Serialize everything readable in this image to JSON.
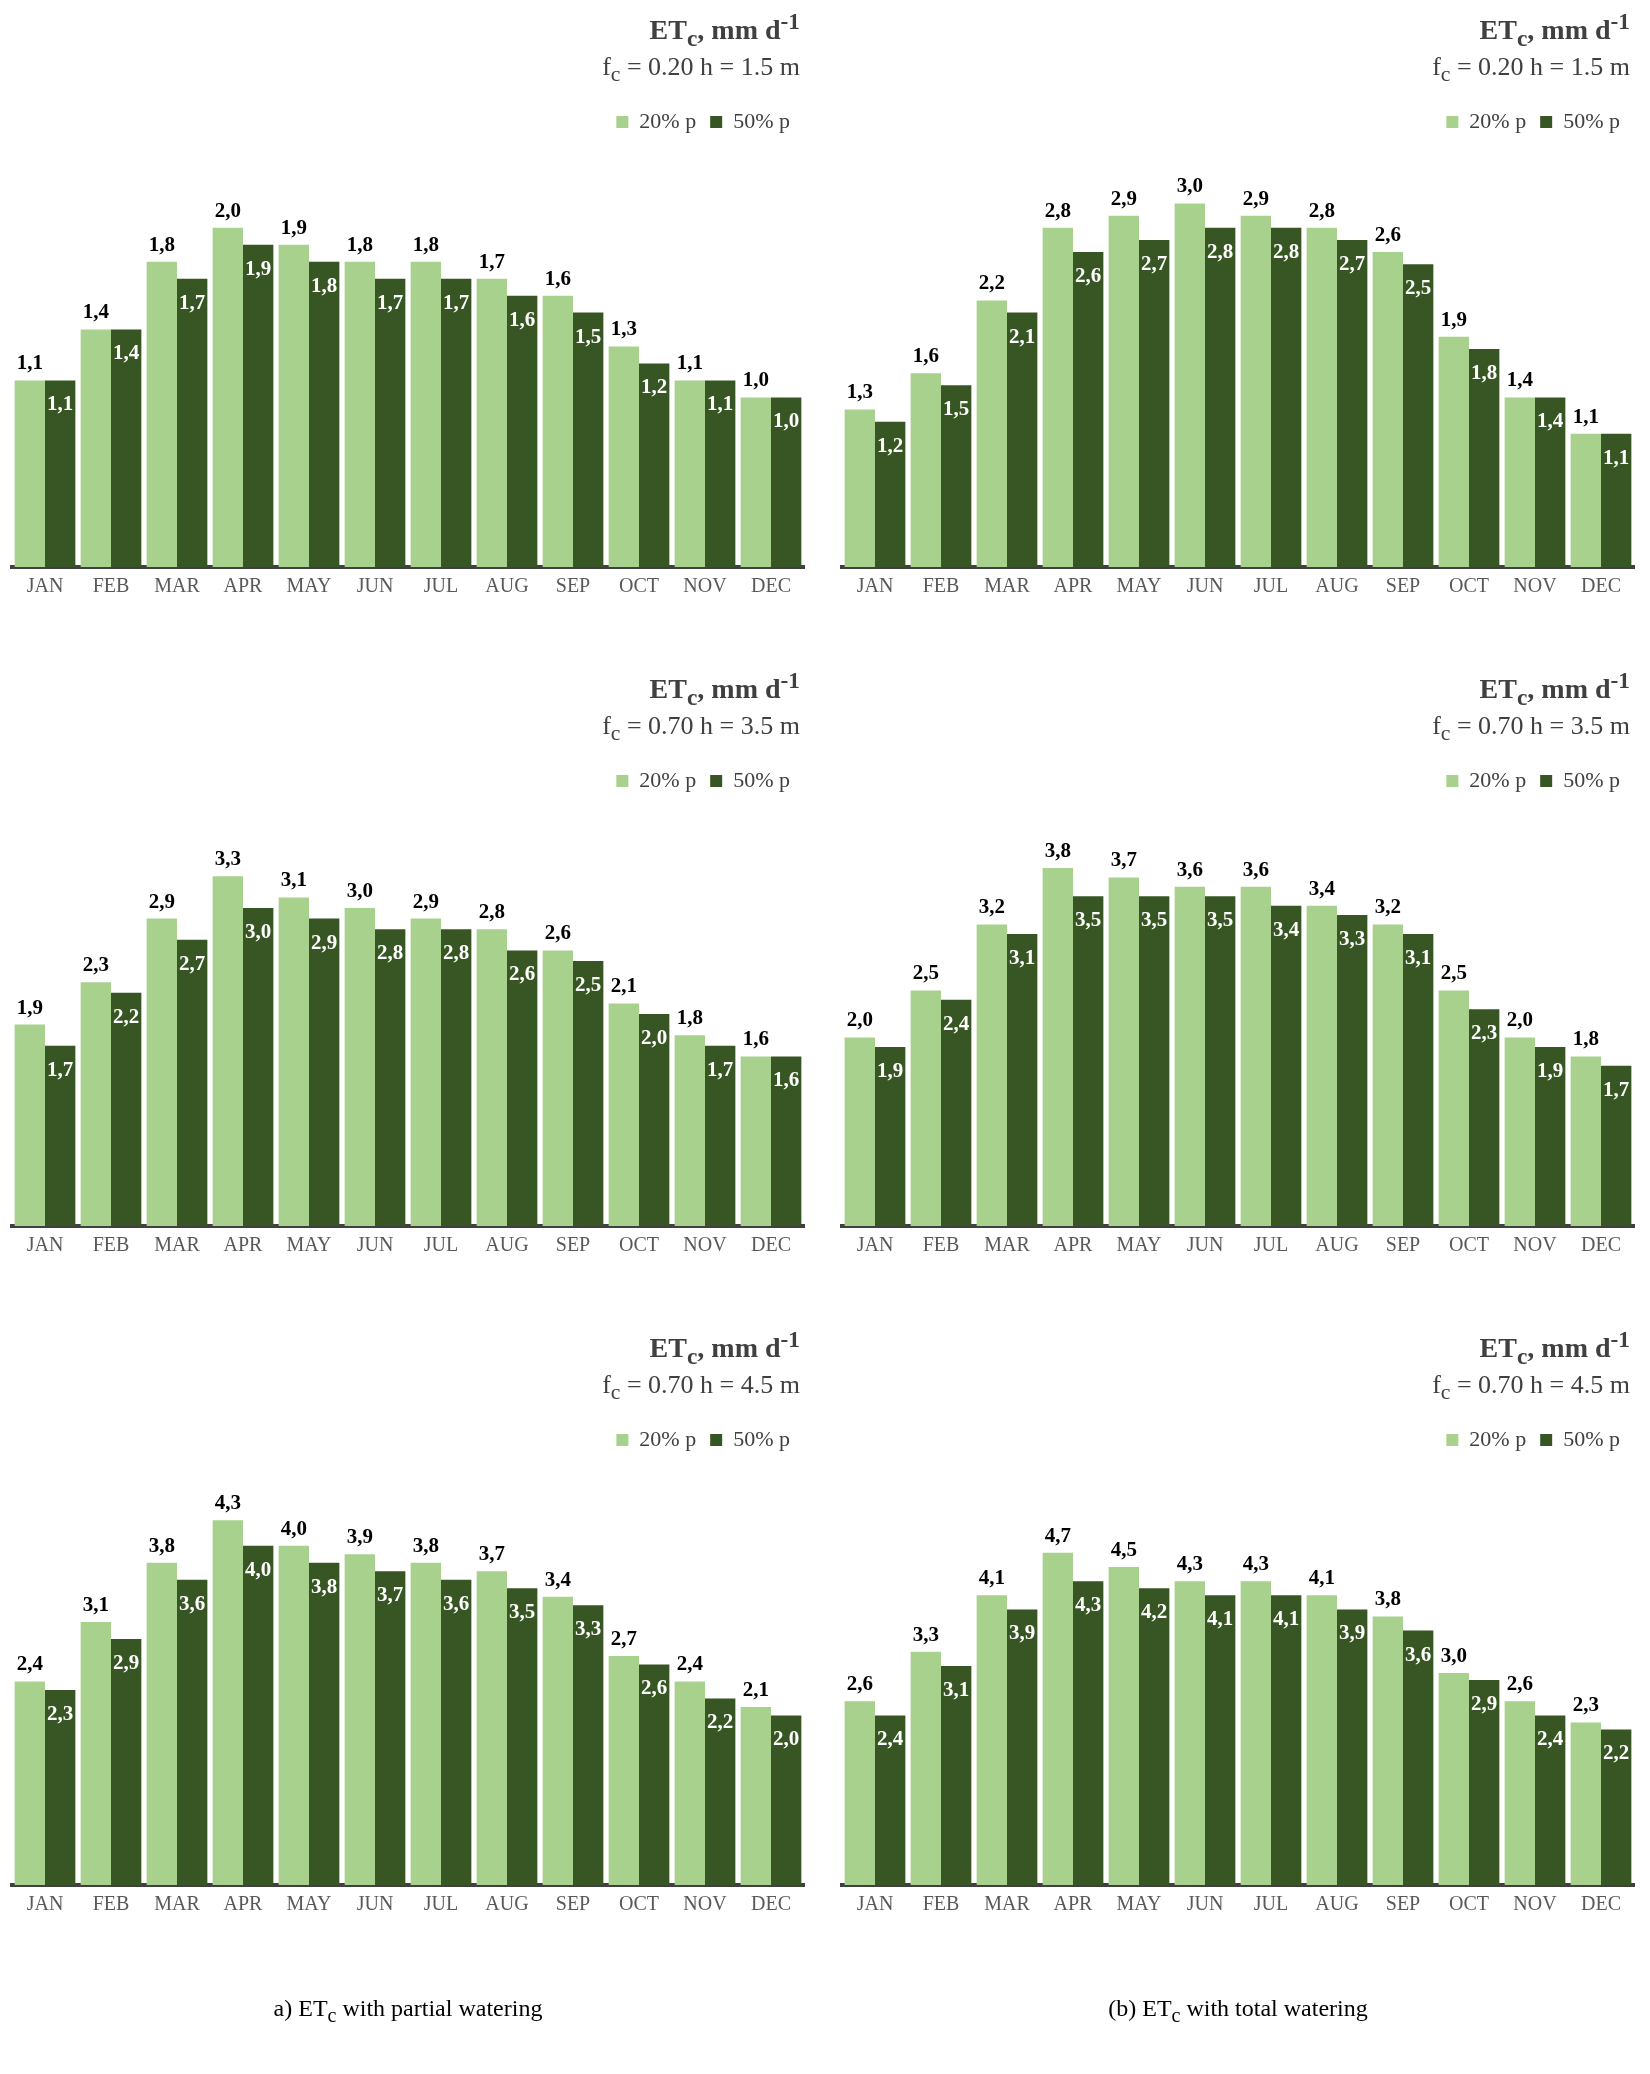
{
  "chart_data": [
    {
      "type": "bar",
      "title": "ET$_{c}$, mm d$^{-1}$",
      "subtitle": "f$_{c}$ = 0.20  h = 1.5 m",
      "categories": [
        "JAN",
        "FEB",
        "MAR",
        "APR",
        "MAY",
        "JUN",
        "JUL",
        "AUG",
        "SEP",
        "OCT",
        "NOV",
        "DEC"
      ],
      "legend": "top right",
      "grid": false,
      "tick_labels": "x",
      "series": [
        {
          "name": "20% p",
          "color": "#a9d18e",
          "values": [
            1.1,
            1.4,
            1.8,
            2.0,
            1.9,
            1.8,
            1.8,
            1.7,
            1.6,
            1.3,
            1.1,
            1.0
          ],
          "value_labels": [
            "1,1",
            "1,4",
            "1,8",
            "2,0",
            "1,9",
            "1,8",
            "1,8",
            "1,7",
            "1,6",
            "1,3",
            "1,1",
            "1,0"
          ]
        },
        {
          "name": "50% p",
          "color": "#375623",
          "values": [
            1.1,
            1.4,
            1.7,
            1.9,
            1.8,
            1.7,
            1.7,
            1.6,
            1.5,
            1.2,
            1.1,
            1.0
          ],
          "value_labels": [
            "1,1",
            "1,4",
            "1,7",
            "1,9",
            "1,8",
            "1,7",
            "1,7",
            "1,6",
            "1,5",
            "1,2",
            "1,1",
            "1,0"
          ]
        }
      ]
    },
    {
      "type": "bar",
      "title": "ET$_{c}$, mm d$^{-1}$",
      "subtitle": "f$_{c}$ = 0.20  h = 1.5 m",
      "categories": [
        "JAN",
        "FEB",
        "MAR",
        "APR",
        "MAY",
        "JUN",
        "JUL",
        "AUG",
        "SEP",
        "OCT",
        "NOV",
        "DEC"
      ],
      "legend": "top right",
      "grid": false,
      "tick_labels": "x",
      "series": [
        {
          "name": "20% p",
          "color": "#a9d18e",
          "values": [
            1.3,
            1.6,
            2.2,
            2.8,
            2.9,
            3.0,
            2.9,
            2.8,
            2.6,
            1.9,
            1.4,
            1.1
          ],
          "value_labels": [
            "1,3",
            "1,6",
            "2,2",
            "2,8",
            "2,9",
            "3,0",
            "2,9",
            "2,8",
            "2,6",
            "1,9",
            "1,4",
            "1,1"
          ]
        },
        {
          "name": "50% p",
          "color": "#375623",
          "values": [
            1.2,
            1.5,
            2.1,
            2.6,
            2.7,
            2.8,
            2.8,
            2.7,
            2.5,
            1.8,
            1.4,
            1.1
          ],
          "value_labels": [
            "1,2",
            "1,5",
            "2,1",
            "2,6",
            "2,7",
            "2,8",
            "2,8",
            "2,7",
            "2,5",
            "1,8",
            "1,4",
            "1,1"
          ]
        }
      ]
    },
    {
      "type": "bar",
      "title": "ET$_{c}$, mm d$^{-1}$",
      "subtitle": "f$_{c}$ = 0.70  h = 3.5 m",
      "categories": [
        "JAN",
        "FEB",
        "MAR",
        "APR",
        "MAY",
        "JUN",
        "JUL",
        "AUG",
        "SEP",
        "OCT",
        "NOV",
        "DEC"
      ],
      "legend": "top right",
      "grid": false,
      "tick_labels": "x",
      "series": [
        {
          "name": "20% p",
          "color": "#a9d18e",
          "values": [
            1.9,
            2.3,
            2.9,
            3.3,
            3.1,
            3.0,
            2.9,
            2.8,
            2.6,
            2.1,
            1.8,
            1.6
          ],
          "value_labels": [
            "1,9",
            "2,3",
            "2,9",
            "3,3",
            "3,1",
            "3,0",
            "2,9",
            "2,8",
            "2,6",
            "2,1",
            "1,8",
            "1,6"
          ]
        },
        {
          "name": "50% p",
          "color": "#375623",
          "values": [
            1.7,
            2.2,
            2.7,
            3.0,
            2.9,
            2.8,
            2.8,
            2.6,
            2.5,
            2.0,
            1.7,
            1.6
          ],
          "value_labels": [
            "1,7",
            "2,2",
            "2,7",
            "3,0",
            "2,9",
            "2,8",
            "2,8",
            "2,6",
            "2,5",
            "2,0",
            "1,7",
            "1,6"
          ]
        }
      ]
    },
    {
      "type": "bar",
      "title": "ET$_{c}$, mm d$^{-1}$",
      "subtitle": "f$_{c}$ = 0.70  h = 3.5 m",
      "categories": [
        "JAN",
        "FEB",
        "MAR",
        "APR",
        "MAY",
        "JUN",
        "JUL",
        "AUG",
        "SEP",
        "OCT",
        "NOV",
        "DEC"
      ],
      "legend": "top right",
      "grid": false,
      "tick_labels": "x",
      "series": [
        {
          "name": "20% p",
          "color": "#a9d18e",
          "values": [
            2.0,
            2.5,
            3.2,
            3.8,
            3.7,
            3.6,
            3.6,
            3.4,
            3.2,
            2.5,
            2.0,
            1.8
          ],
          "value_labels": [
            "2,0",
            "2,5",
            "3,2",
            "3,8",
            "3,7",
            "3,6",
            "3,6",
            "3,4",
            "3,2",
            "2,5",
            "2,0",
            "1,8"
          ]
        },
        {
          "name": "50% p",
          "color": "#375623",
          "values": [
            1.9,
            2.4,
            3.1,
            3.5,
            3.5,
            3.5,
            3.4,
            3.3,
            3.1,
            2.3,
            1.9,
            1.7
          ],
          "value_labels": [
            "1,9",
            "2,4",
            "3,1",
            "3,5",
            "3,5",
            "3,5",
            "3,4",
            "3,3",
            "3,1",
            "2,3",
            "1,9",
            "1,7"
          ]
        }
      ]
    },
    {
      "type": "bar",
      "title": "ET$_{c}$, mm d$^{-1}$",
      "subtitle": "f$_{c}$ = 0.70  h = 4.5 m",
      "categories": [
        "JAN",
        "FEB",
        "MAR",
        "APR",
        "MAY",
        "JUN",
        "JUL",
        "AUG",
        "SEP",
        "OCT",
        "NOV",
        "DEC"
      ],
      "legend": "top right",
      "grid": false,
      "tick_labels": "x",
      "annotations": [
        "a) ET$_{c}$ with partial watering"
      ],
      "series": [
        {
          "name": "20% p",
          "color": "#a9d18e",
          "values": [
            2.4,
            3.1,
            3.8,
            4.3,
            4.0,
            3.9,
            3.8,
            3.7,
            3.4,
            2.7,
            2.4,
            2.1
          ],
          "value_labels": [
            "2,4",
            "3,1",
            "3,8",
            "4,3",
            "4,0",
            "3,9",
            "3,8",
            "3,7",
            "3,4",
            "2,7",
            "2,4",
            "2,1"
          ]
        },
        {
          "name": "50% p",
          "color": "#375623",
          "values": [
            2.3,
            2.9,
            3.6,
            4.0,
            3.8,
            3.7,
            3.6,
            3.5,
            3.3,
            2.6,
            2.2,
            2.0
          ],
          "value_labels": [
            "2,3",
            "2,9",
            "3,6",
            "4,0",
            "3,8",
            "3,7",
            "3,6",
            "3,5",
            "3,3",
            "2,6",
            "2,2",
            "2,0"
          ]
        }
      ]
    },
    {
      "type": "bar",
      "title": "ET$_{c}$, mm d$^{-1}$",
      "subtitle": "f$_{c}$ = 0.70  h = 4.5 m",
      "categories": [
        "JAN",
        "FEB",
        "MAR",
        "APR",
        "MAY",
        "JUN",
        "JUL",
        "AUG",
        "SEP",
        "OCT",
        "NOV",
        "DEC"
      ],
      "legend": "top right",
      "grid": false,
      "tick_labels": "x",
      "annotations": [
        "(b) ET$_{c}$ with total watering"
      ],
      "series": [
        {
          "name": "20% p",
          "color": "#a9d18e",
          "values": [
            2.6,
            3.3,
            4.1,
            4.7,
            4.5,
            4.3,
            4.3,
            4.1,
            3.8,
            3.0,
            2.6,
            2.3
          ],
          "value_labels": [
            "2,6",
            "3,3",
            "4,1",
            "4,7",
            "4,5",
            "4,3",
            "4,3",
            "4,1",
            "3,8",
            "3,0",
            "2,6",
            "2,3"
          ]
        },
        {
          "name": "50% p",
          "color": "#375623",
          "values": [
            2.4,
            3.1,
            3.9,
            4.3,
            4.2,
            4.1,
            4.1,
            3.9,
            3.6,
            2.9,
            2.4,
            2.2
          ],
          "value_labels": [
            "2,4",
            "3,1",
            "3,9",
            "4,3",
            "4,2",
            "4,1",
            "4,1",
            "3,9",
            "3,6",
            "2,9",
            "2,4",
            "2,2"
          ]
        }
      ]
    }
  ]
}
